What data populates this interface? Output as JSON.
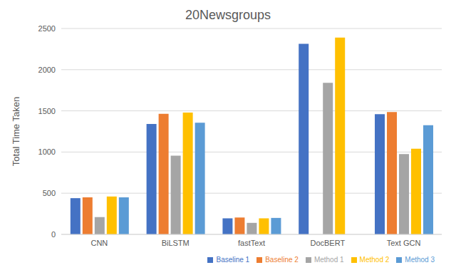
{
  "chart_data": {
    "type": "bar",
    "title": "20Newsgroups",
    "y_label": "Total Time Taken",
    "categories": [
      "CNN",
      "BiLSTM",
      "fastText",
      "DocBERT",
      "Text GCN"
    ],
    "series": [
      {
        "name": "Baseline 1",
        "color": "#4472c4",
        "values": [
          440,
          1340,
          195,
          2315,
          1460
        ]
      },
      {
        "name": "Baseline 2",
        "color": "#ed7d31",
        "values": [
          450,
          1465,
          205,
          null,
          1485
        ]
      },
      {
        "name": "Method 1",
        "color": "#a5a5a5",
        "values": [
          210,
          955,
          140,
          1840,
          975
        ]
      },
      {
        "name": "Method 2",
        "color": "#ffc000",
        "values": [
          460,
          1480,
          195,
          2390,
          1040
        ]
      },
      {
        "name": "Method 3",
        "color": "#5b9bd5",
        "values": [
          450,
          1355,
          200,
          null,
          1325
        ]
      }
    ],
    "ylim": [
      0,
      2500
    ],
    "yticks": [
      0,
      500,
      1000,
      1500,
      2000,
      2500
    ],
    "grid": true,
    "legend": "bottom"
  }
}
